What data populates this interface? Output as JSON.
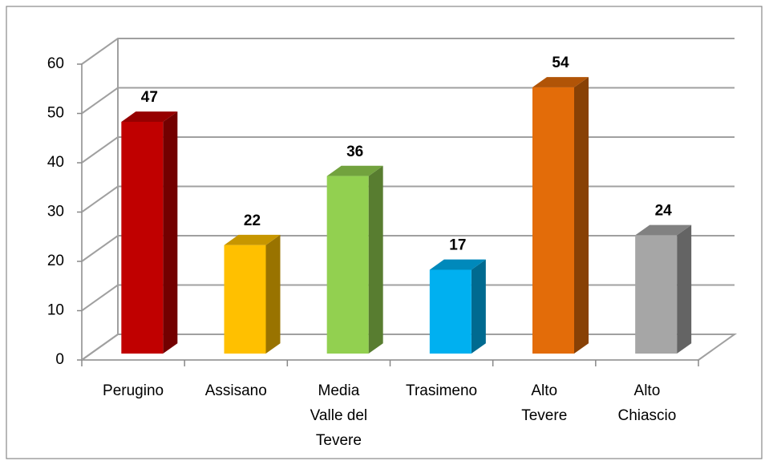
{
  "chart_data": {
    "type": "bar3d",
    "categories": [
      "Perugino",
      "Assisano",
      "Media Valle del Tevere",
      "Trasimeno",
      "Alto Tevere",
      "Alto Chiascio"
    ],
    "values": [
      47,
      22,
      36,
      17,
      54,
      24
    ],
    "colors": [
      "#c00000",
      "#ffc000",
      "#92d050",
      "#00b0f0",
      "#e36c09",
      "#a6a6a6"
    ],
    "ylim": [
      0,
      60
    ],
    "yticks": [
      0,
      10,
      20,
      30,
      40,
      50,
      60
    ],
    "grid": true
  }
}
